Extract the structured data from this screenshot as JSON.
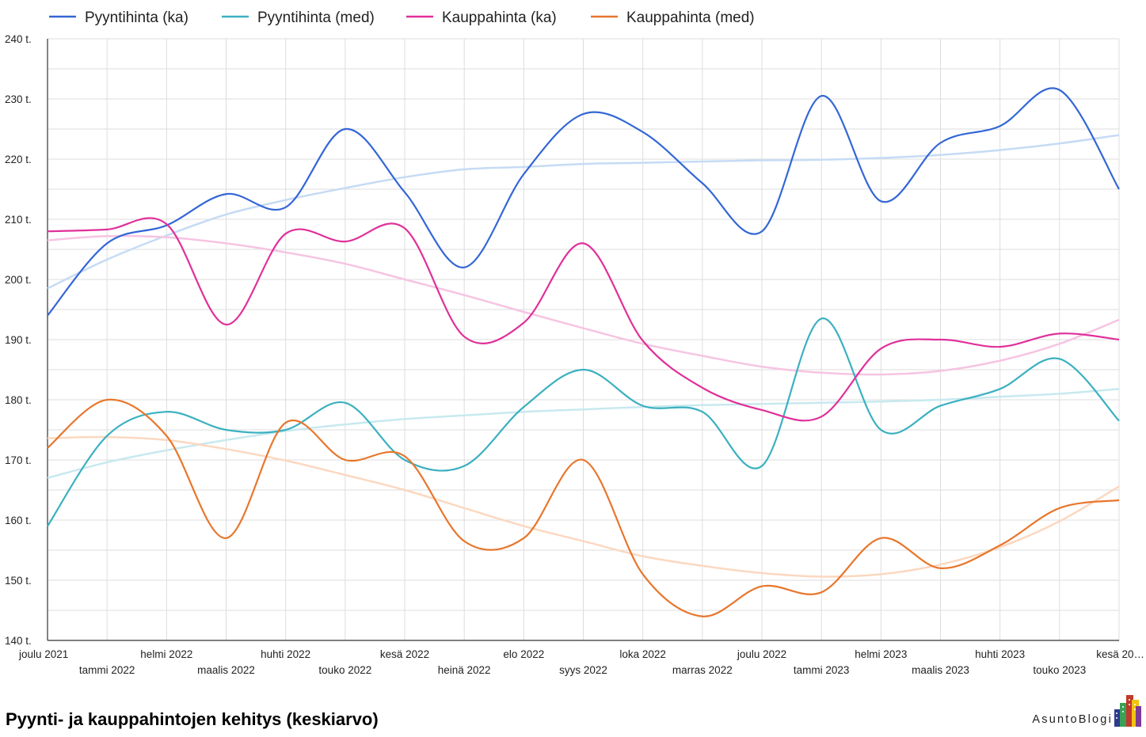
{
  "page": {
    "footer_title": "Pyynti- ja kauppahintojen kehitys (keskiarvo)",
    "brand": "AsuntoBlogi"
  },
  "chart_data": {
    "type": "line",
    "curve": "smooth",
    "legend_position": "top-left",
    "grid": true,
    "ylim": [
      140000,
      240000
    ],
    "y_ticks": [
      {
        "value": 140000,
        "label": "140 t."
      },
      {
        "value": 150000,
        "label": "150 t."
      },
      {
        "value": 160000,
        "label": "160 t."
      },
      {
        "value": 170000,
        "label": "170 t."
      },
      {
        "value": 180000,
        "label": "180 t."
      },
      {
        "value": 190000,
        "label": "190 t."
      },
      {
        "value": 200000,
        "label": "200 t."
      },
      {
        "value": 210000,
        "label": "210 t."
      },
      {
        "value": 220000,
        "label": "220 t."
      },
      {
        "value": 230000,
        "label": "230 t."
      },
      {
        "value": 240000,
        "label": "240 t."
      }
    ],
    "categories": [
      "joulu 2021",
      "tammi 2022",
      "helmi 2022",
      "maalis 2022",
      "huhti 2022",
      "touko 2022",
      "kesä 2022",
      "heinä 2022",
      "elo 2022",
      "syys 2022",
      "loka 2022",
      "marras 2022",
      "joulu 2022",
      "tammi 2023",
      "helmi 2023",
      "maalis 2023",
      "huhti 2023",
      "touko 2023",
      "kesä 20…"
    ],
    "series": [
      {
        "name": "Pyyntihinta (ka)",
        "color": "#3366d6",
        "values": [
          194000,
          206000,
          209000,
          214200,
          212000,
          225000,
          214500,
          202000,
          217500,
          227500,
          224500,
          216000,
          208000,
          230500,
          213000,
          222700,
          225500,
          231500,
          215000
        ]
      },
      {
        "name": "Pyyntihinta (med)",
        "color": "#3bb0c0",
        "values": [
          159000,
          174000,
          178000,
          175000,
          175000,
          179500,
          170000,
          169000,
          178800,
          185000,
          179000,
          178000,
          169000,
          193500,
          175000,
          179000,
          181800,
          186800,
          176500
        ]
      },
      {
        "name": "Kauppahinta (ka)",
        "color": "#e0309a",
        "values": [
          208000,
          208300,
          209200,
          192500,
          207600,
          206300,
          208500,
          190500,
          192800,
          206000,
          189800,
          182000,
          178300,
          177200,
          188500,
          190000,
          188800,
          191000,
          190000
        ]
      },
      {
        "name": "Kauppahinta (med)",
        "color": "#e8762c",
        "values": [
          172000,
          180000,
          174000,
          157000,
          176200,
          170000,
          170600,
          156500,
          157000,
          170000,
          151000,
          144000,
          149000,
          148000,
          157000,
          152000,
          155800,
          162000,
          163300
        ]
      }
    ],
    "trendlines": [
      {
        "series": "Pyyntihinta (ka)",
        "color": "#c6dbf4",
        "values": [
          198500,
          203300,
          207300,
          210800,
          213200,
          215200,
          217000,
          218300,
          218700,
          219200,
          219400,
          219600,
          219800,
          219900,
          220200,
          220700,
          221500,
          222600,
          224000
        ]
      },
      {
        "series": "Pyyntihinta (med)",
        "color": "#c8e9ef",
        "values": [
          167000,
          169600,
          171600,
          173300,
          174800,
          175900,
          176800,
          177400,
          178000,
          178400,
          178800,
          179100,
          179300,
          179500,
          179700,
          180000,
          180500,
          181000,
          181800
        ]
      },
      {
        "series": "Kauppahinta (ka)",
        "color": "#f6c4e2",
        "values": [
          206500,
          207200,
          207000,
          206000,
          204500,
          202600,
          200000,
          197400,
          194600,
          191900,
          189300,
          187300,
          185500,
          184500,
          184200,
          184800,
          186500,
          189300,
          193300
        ]
      },
      {
        "series": "Kauppahinta (med)",
        "color": "#fbd8c0",
        "values": [
          173600,
          173800,
          173300,
          171800,
          169900,
          167500,
          165000,
          162000,
          159000,
          156500,
          154000,
          152400,
          151200,
          150600,
          151000,
          152600,
          155500,
          159800,
          165600
        ]
      }
    ]
  }
}
